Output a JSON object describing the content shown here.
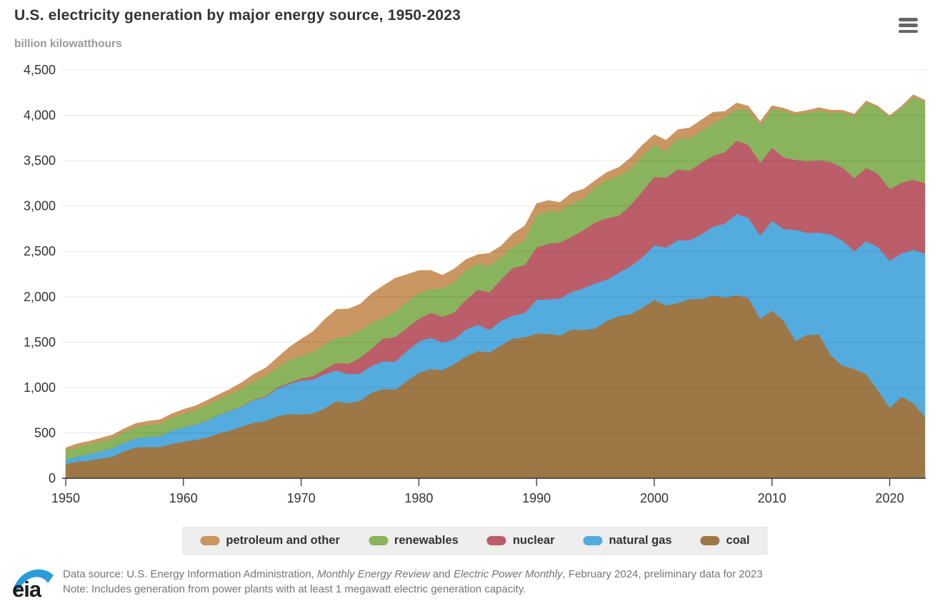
{
  "header": {
    "title": "U.S. electricity generation by major energy source, 1950-2023",
    "subtitle": "billion kilowatthours"
  },
  "menu": {
    "icon": "hamburger-menu-icon"
  },
  "chart_data": {
    "type": "area",
    "stacked": true,
    "title": "U.S. electricity generation by major energy source, 1950-2023",
    "ylabel": "billion kilowatthours",
    "xlabel": "",
    "x_start": 1950,
    "x_end": 2023,
    "ylim": [
      0,
      4500
    ],
    "y_tick_interval": 500,
    "x_ticks": [
      1950,
      1960,
      1970,
      1980,
      1990,
      2000,
      2010,
      2020
    ],
    "grid": "horizontal",
    "legend_position": "bottom",
    "series": [
      {
        "name": "coal",
        "color": "#9e7747",
        "values": [
          155,
          185,
          195,
          219,
          239,
          301,
          339,
          346,
          344,
          378,
          403,
          422,
          450,
          494,
          526,
          571,
          613,
          630,
          685,
          706,
          704,
          713,
          771,
          848,
          828,
          853,
          944,
          985,
          976,
          1075,
          1162,
          1203,
          1192,
          1259,
          1342,
          1402,
          1386,
          1464,
          1541,
          1554,
          1594,
          1591,
          1576,
          1639,
          1635,
          1653,
          1737,
          1787,
          1807,
          1881,
          1966,
          1904,
          1933,
          1974,
          1978,
          2013,
          1991,
          2016,
          1986,
          1756,
          1847,
          1733,
          1514,
          1581,
          1582,
          1352,
          1239,
          1206,
          1146,
          966,
          774,
          899,
          831,
          675
        ]
      },
      {
        "name": "natural gas",
        "color": "#53abde",
        "values": [
          45,
          57,
          68,
          80,
          94,
          95,
          104,
          111,
          120,
          147,
          158,
          169,
          184,
          202,
          220,
          222,
          251,
          265,
          304,
          333,
          373,
          374,
          376,
          341,
          320,
          300,
          295,
          306,
          305,
          329,
          346,
          346,
          305,
          274,
          297,
          292,
          249,
          273,
          253,
          267,
          373,
          381,
          404,
          415,
          460,
          496,
          455,
          479,
          531,
          556,
          601,
          639,
          691,
          650,
          710,
          761,
          816,
          897,
          883,
          921,
          988,
          1013,
          1225,
          1124,
          1126,
          1335,
          1378,
          1296,
          1468,
          1582,
          1624,
          1579,
          1689,
          1802
        ]
      },
      {
        "name": "nuclear",
        "color": "#bb5e69",
        "values": [
          0,
          0,
          0,
          0,
          0,
          0,
          0,
          0,
          0,
          0,
          1,
          2,
          2,
          3,
          3,
          4,
          6,
          8,
          13,
          14,
          22,
          38,
          54,
          83,
          114,
          173,
          191,
          251,
          276,
          255,
          251,
          273,
          283,
          294,
          328,
          384,
          414,
          455,
          527,
          529,
          577,
          613,
          619,
          610,
          640,
          673,
          675,
          629,
          674,
          728,
          754,
          769,
          780,
          764,
          789,
          782,
          787,
          806,
          806,
          799,
          807,
          790,
          769,
          789,
          797,
          797,
          806,
          805,
          807,
          809,
          790,
          778,
          772,
          775
        ]
      },
      {
        "name": "renewables",
        "color": "#89b35c",
        "values": [
          101,
          105,
          109,
          107,
          110,
          116,
          124,
          132,
          140,
          141,
          150,
          155,
          172,
          172,
          181,
          197,
          200,
          225,
          226,
          254,
          251,
          270,
          276,
          275,
          304,
          303,
          287,
          224,
          284,
          283,
          285,
          264,
          312,
          336,
          324,
          287,
          294,
          253,
          228,
          273,
          357,
          358,
          342,
          369,
          348,
          387,
          425,
          440,
          394,
          390,
          356,
          289,
          343,
          355,
          351,
          357,
          385,
          352,
          381,
          417,
          428,
          513,
          502,
          534,
          551,
          546,
          609,
          687,
          713,
          728,
          792,
          826,
          913,
          894
        ]
      },
      {
        "name": "petroleum and other",
        "color": "#ca9662",
        "values": [
          34,
          35,
          36,
          38,
          37,
          37,
          39,
          41,
          41,
          44,
          48,
          50,
          50,
          52,
          56,
          65,
          79,
          89,
          104,
          138,
          184,
          220,
          274,
          314,
          301,
          289,
          320,
          358,
          365,
          304,
          246,
          206,
          147,
          144,
          120,
          100,
          137,
          118,
          149,
          158,
          127,
          119,
          100,
          113,
          105,
          75,
          82,
          93,
          129,
          119,
          111,
          125,
          95,
          120,
          121,
          122,
          64,
          66,
          46,
          39,
          37,
          30,
          23,
          27,
          30,
          28,
          24,
          21,
          25,
          18,
          17,
          19,
          23,
          21
        ]
      }
    ],
    "legend_order": [
      "petroleum and other",
      "renewables",
      "nuclear",
      "natural gas",
      "coal"
    ]
  },
  "footer": {
    "logo_text": "eia",
    "source_line_segments": [
      {
        "text": "Data source: U.S. Energy Information Administration, ",
        "italic": false
      },
      {
        "text": "Monthly Energy Review",
        "italic": true
      },
      {
        "text": " and ",
        "italic": false
      },
      {
        "text": "Electric Power Monthly",
        "italic": true
      },
      {
        "text": ", February 2024, preliminary data for 2023",
        "italic": false
      }
    ],
    "note_line": "Note: Includes generation from power plants with at least 1 megawatt electric generation capacity."
  },
  "style": {
    "accent_blue": "#2b9cd8",
    "text_dark": "#333333",
    "text_gray": "#757575",
    "grid_color": "#e6e6e6",
    "legend_bg": "#eeeeee"
  }
}
